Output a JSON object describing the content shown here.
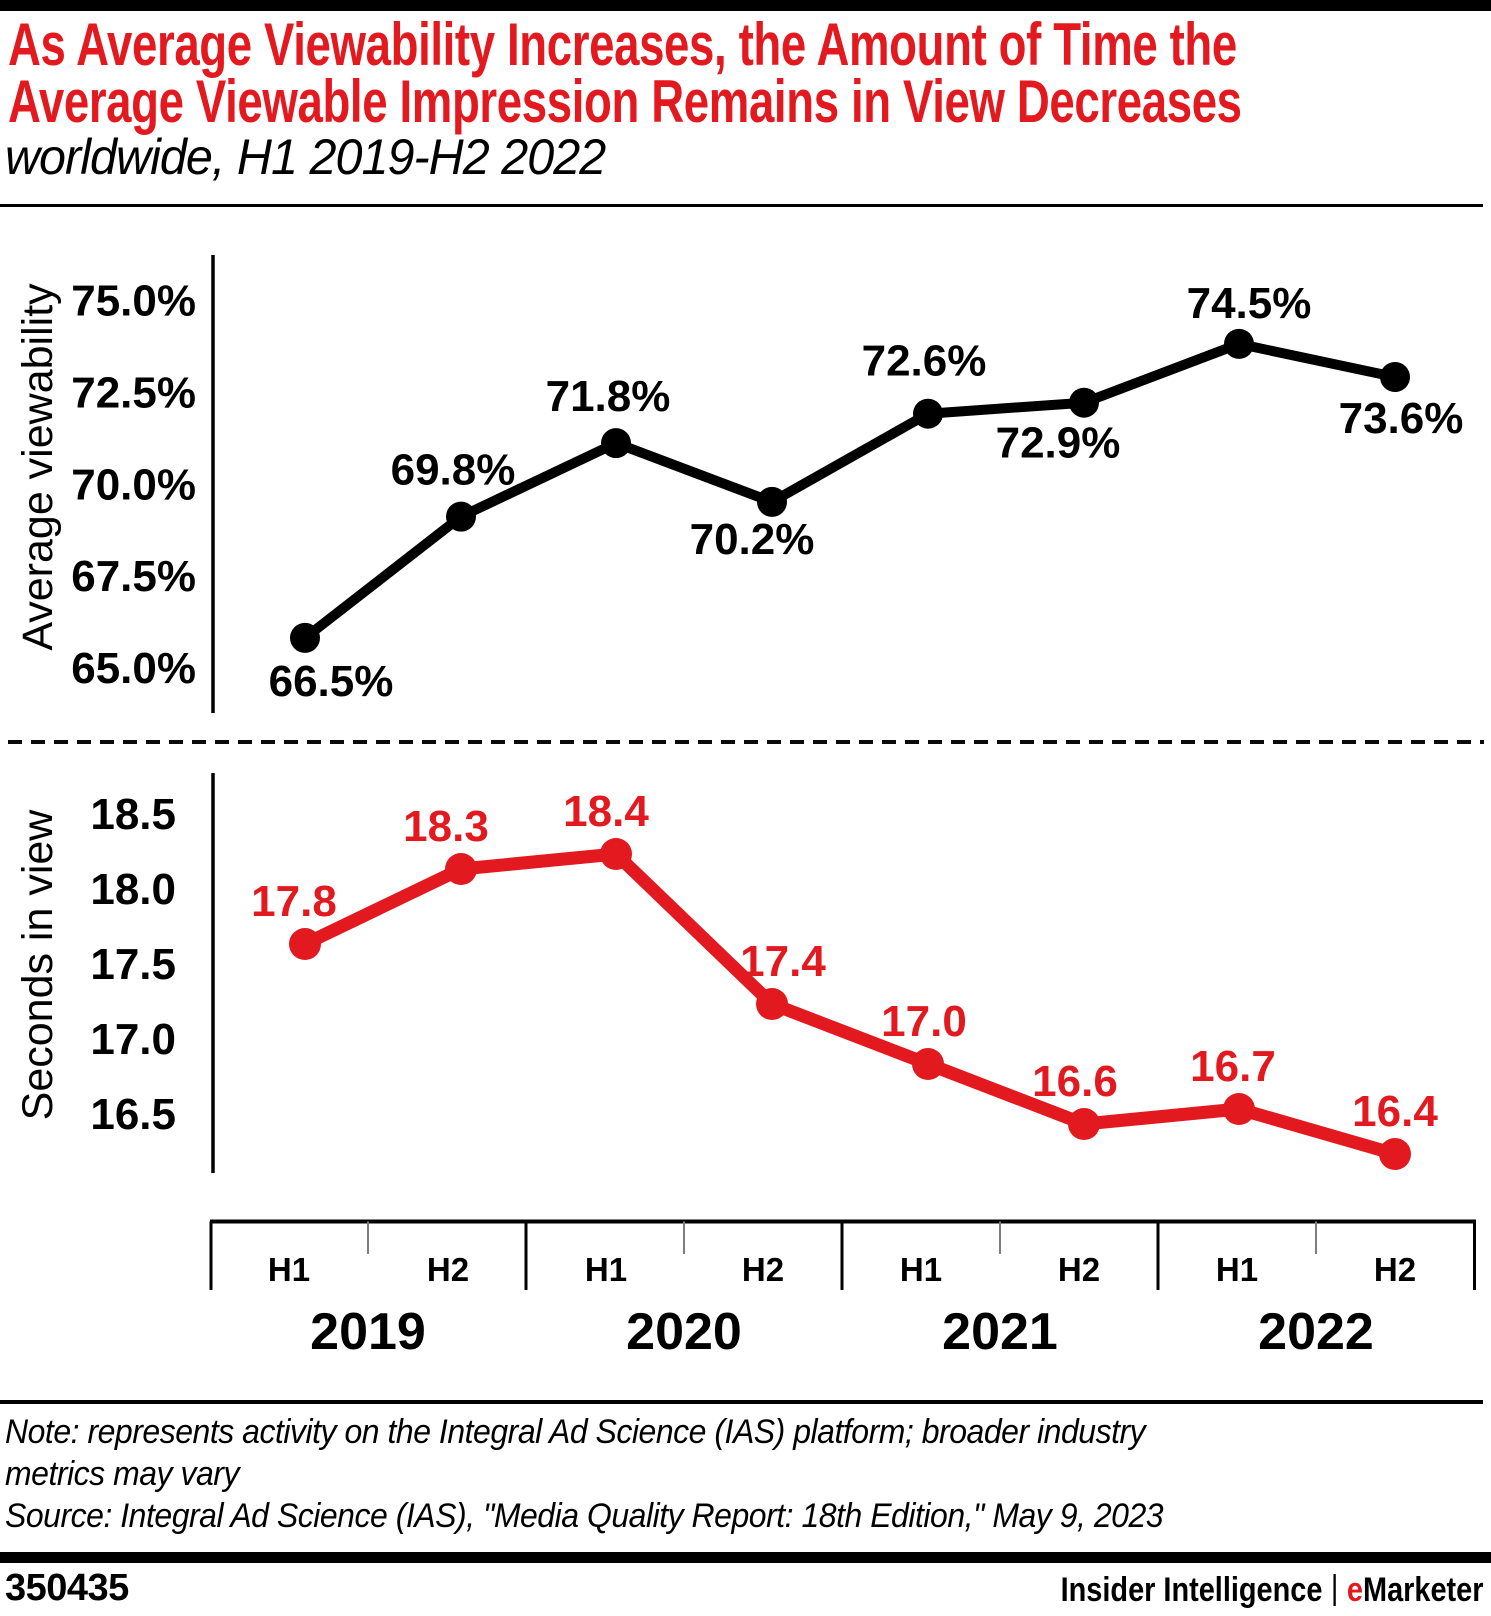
{
  "header": {
    "title_line1": "As Average Viewability Increases, the Amount of Time the",
    "title_line2": "Average Viewable Impression Remains in View Decreases",
    "subtitle": "worldwide, H1 2019-H2 2022"
  },
  "colors": {
    "accent_red": "#e31920",
    "line_black": "#000000",
    "tick_gray": "#7d7d7d"
  },
  "chart_data": [
    {
      "type": "line",
      "name": "average-viewability",
      "ylabel": "Average viewability",
      "color_key": "line_black",
      "categories": [
        "H1 2019",
        "H2 2019",
        "H1 2020",
        "H2 2020",
        "H1 2021",
        "H2 2021",
        "H1 2022",
        "H2 2022"
      ],
      "values": [
        66.5,
        69.8,
        71.8,
        70.2,
        72.6,
        72.9,
        74.5,
        73.6
      ],
      "point_labels": [
        "66.5%",
        "69.8%",
        "71.8%",
        "70.2%",
        "72.6%",
        "72.9%",
        "74.5%",
        "73.6%"
      ],
      "yticks": [
        "75.0%",
        "72.5%",
        "70.0%",
        "67.5%",
        "65.0%"
      ],
      "ytick_values": [
        75.0,
        72.5,
        70.0,
        67.5,
        65.0
      ],
      "ylim": [
        64.3,
        75.8
      ],
      "grid": false,
      "legend": "none"
    },
    {
      "type": "line",
      "name": "seconds-in-view",
      "ylabel": "Seconds in view",
      "color_key": "accent_red",
      "categories": [
        "H1 2019",
        "H2 2019",
        "H1 2020",
        "H2 2020",
        "H1 2021",
        "H2 2021",
        "H1 2022",
        "H2 2022"
      ],
      "values": [
        17.8,
        18.3,
        18.4,
        17.4,
        17.0,
        16.6,
        16.7,
        16.4
      ],
      "point_labels": [
        "17.8",
        "18.3",
        "18.4",
        "17.4",
        "17.0",
        "16.6",
        "16.7",
        "16.4"
      ],
      "yticks": [
        "18.5",
        "18.0",
        "17.5",
        "17.0",
        "16.5"
      ],
      "ytick_values": [
        18.5,
        18.0,
        17.5,
        17.0,
        16.5
      ],
      "ylim": [
        16.1,
        18.8
      ],
      "grid": false,
      "legend": "none"
    }
  ],
  "xaxis": {
    "half_labels": [
      "H1",
      "H2",
      "H1",
      "H2",
      "H1",
      "H2",
      "H1",
      "H2"
    ],
    "years": [
      "2019",
      "2020",
      "2021",
      "2022"
    ]
  },
  "footnote": {
    "lines": [
      "Note: represents activity on the Integral Ad Science (IAS) platform; broader industry",
      "metrics may vary",
      "Source: Integral Ad Science (IAS), \"Media Quality Report: 18th Edition,\" May 9, 2023"
    ]
  },
  "footer": {
    "chart_id": "350435",
    "brand_left": "Insider Intelligence",
    "brand_separator": "|",
    "brand_e": "e",
    "brand_rest": "Marketer"
  }
}
